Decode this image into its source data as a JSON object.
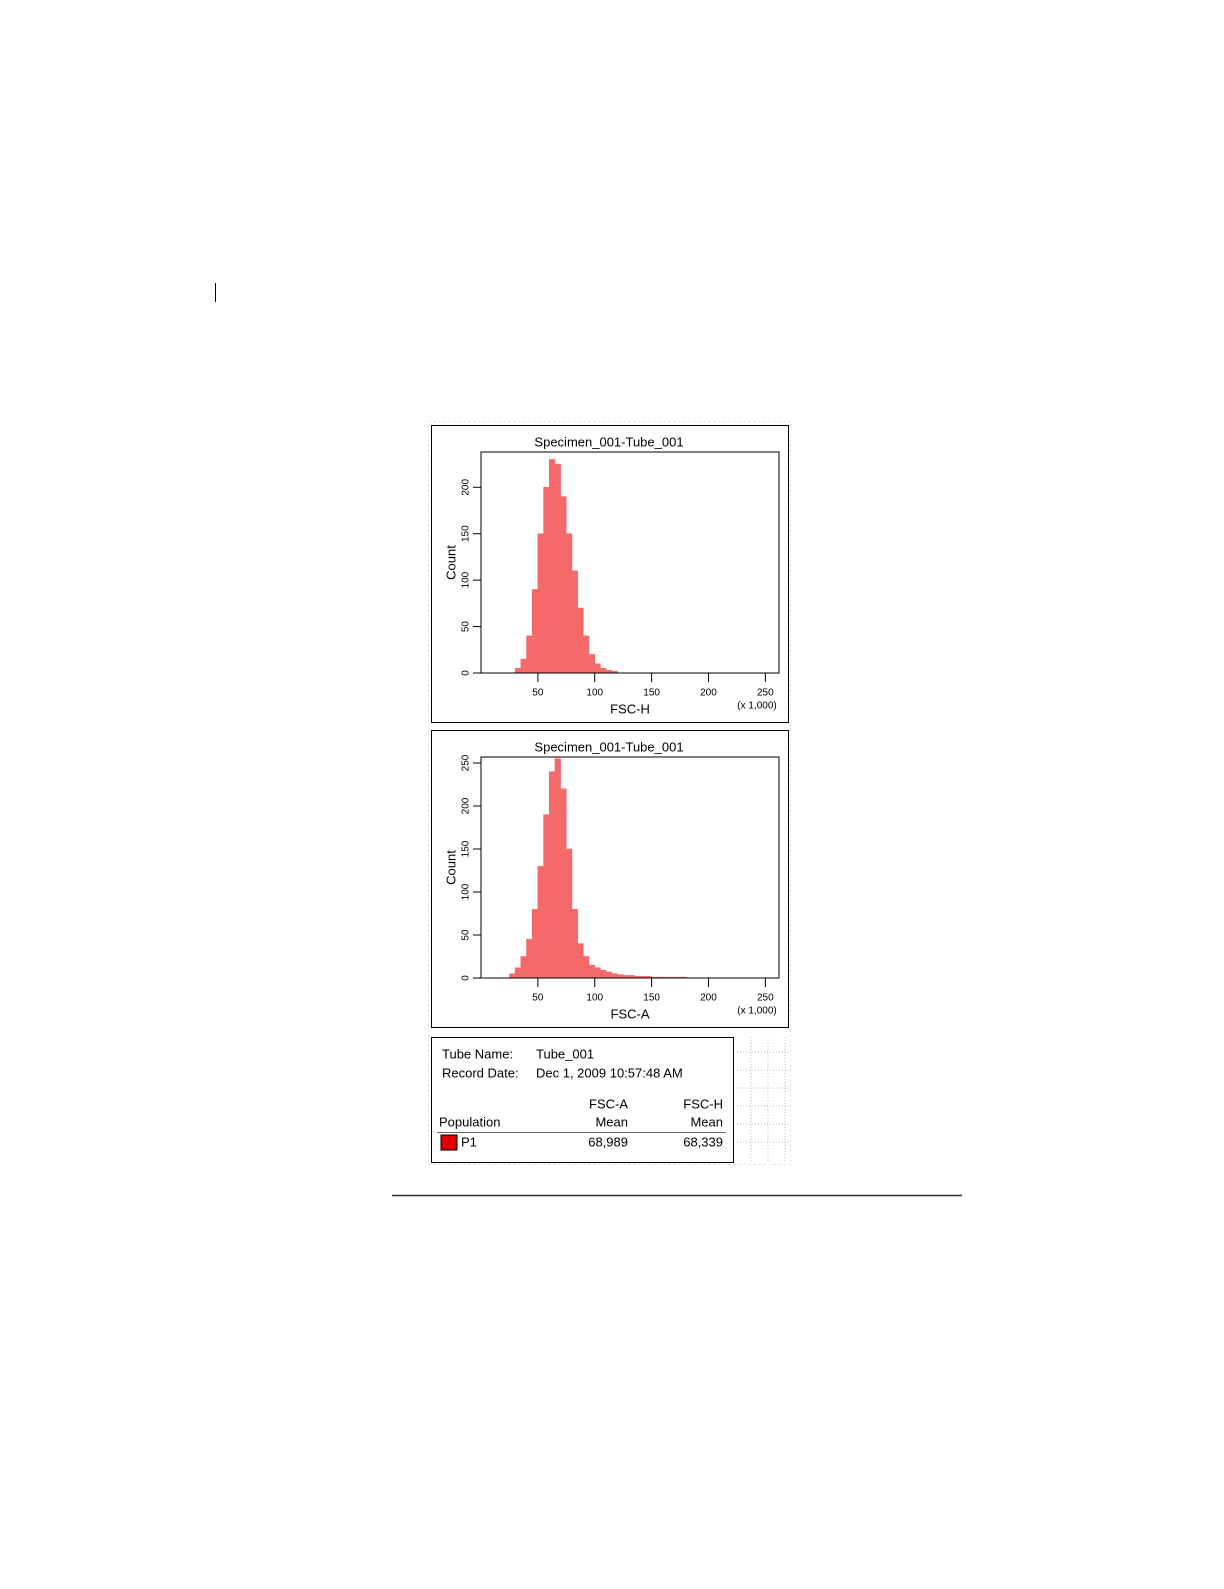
{
  "chart_data": [
    {
      "type": "histogram",
      "title": "Specimen_001-Tube_001",
      "xlabel": "FSC-H",
      "ylabel": "Count",
      "x_unit_label": "(x 1,000)",
      "bins": [
        0,
        5,
        10,
        15,
        20,
        25,
        30,
        35,
        40,
        45,
        50,
        55,
        60,
        65,
        70,
        75,
        80,
        85,
        90,
        95,
        100,
        105,
        110,
        115,
        120,
        125,
        130,
        135,
        140,
        145,
        150,
        155,
        160,
        165,
        170,
        175,
        180,
        185,
        190,
        195,
        200,
        205,
        210,
        215,
        220,
        225,
        230,
        235,
        240,
        245,
        250,
        255,
        260
      ],
      "counts": [
        0,
        0,
        0,
        0,
        0,
        0,
        5,
        15,
        40,
        90,
        150,
        200,
        230,
        225,
        190,
        150,
        110,
        70,
        40,
        20,
        10,
        5,
        3,
        2,
        0,
        0,
        0,
        0,
        0,
        0,
        0,
        0,
        0,
        0,
        0,
        0,
        0,
        0,
        0,
        0,
        0,
        0,
        0,
        0,
        0,
        0,
        0,
        0,
        0,
        0,
        0,
        0
      ],
      "color": "#f46a6a",
      "xlim": [
        0,
        262
      ],
      "ylim": [
        0,
        238
      ],
      "xticks": [
        50,
        100,
        150,
        200,
        250
      ],
      "yticks": [
        0,
        50,
        100,
        150,
        200
      ]
    },
    {
      "type": "histogram",
      "title": "Specimen_001-Tube_001",
      "xlabel": "FSC-A",
      "ylabel": "Count",
      "x_unit_label": "(x 1,000)",
      "bins": [
        0,
        5,
        10,
        15,
        20,
        25,
        30,
        35,
        40,
        45,
        50,
        55,
        60,
        65,
        70,
        75,
        80,
        85,
        90,
        95,
        100,
        105,
        110,
        115,
        120,
        125,
        130,
        135,
        140,
        145,
        150,
        155,
        160,
        165,
        170,
        175,
        180,
        185,
        190,
        195,
        200,
        205,
        210,
        215,
        220,
        225,
        230,
        235,
        240,
        245,
        250,
        255,
        260
      ],
      "counts": [
        0,
        0,
        0,
        0,
        0,
        5,
        12,
        25,
        45,
        80,
        130,
        190,
        240,
        255,
        220,
        150,
        80,
        40,
        25,
        15,
        12,
        9,
        7,
        5,
        4,
        3,
        3,
        2,
        2,
        2,
        1,
        1,
        1,
        1,
        1,
        1,
        0,
        0,
        0,
        0,
        0,
        0,
        0,
        0,
        0,
        0,
        0,
        0,
        0,
        0,
        0,
        0
      ],
      "color": "#f46a6a",
      "xlim": [
        0,
        262
      ],
      "ylim": [
        0,
        257
      ],
      "xticks": [
        50,
        100,
        150,
        200,
        250
      ],
      "yticks": [
        0,
        50,
        100,
        150,
        200,
        250
      ]
    }
  ],
  "stats": {
    "tube_name_label": "Tube Name:",
    "tube_name": "Tube_001",
    "record_date_label": "Record Date:",
    "record_date": "Dec 1, 2009 10:57:48 AM",
    "columns": [
      [
        "Population"
      ],
      [
        "FSC-A",
        "Mean"
      ],
      [
        "FSC-H",
        "Mean"
      ]
    ],
    "rows": [
      {
        "population": "P1",
        "color": "#e00000",
        "values": [
          "68,989",
          "68,339"
        ]
      }
    ]
  }
}
